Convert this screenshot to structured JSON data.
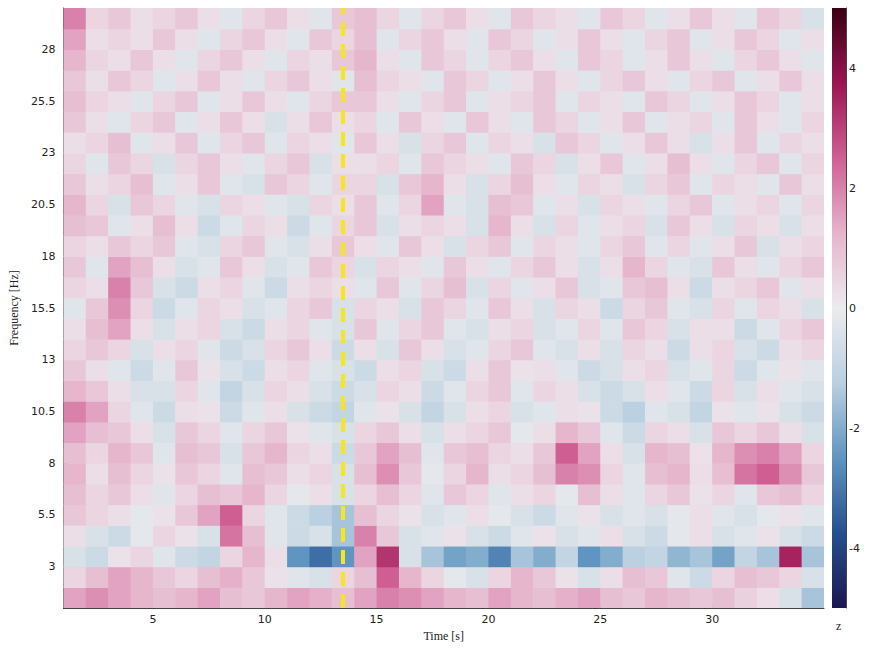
{
  "chart_data": {
    "type": "heatmap",
    "xlabel": "Time [s]",
    "ylabel": "Frequency [Hz]",
    "xlim": [
      1,
      35
    ],
    "ylim": [
      1,
      30
    ],
    "xticks": [
      5,
      10,
      15,
      20,
      25,
      30
    ],
    "yticks": [
      3,
      5.5,
      8,
      10.5,
      13,
      15.5,
      18,
      20.5,
      23,
      25.5,
      28
    ],
    "colorbar": {
      "range": [
        -5,
        5
      ],
      "ticks": [
        -4,
        -2,
        0,
        2,
        4
      ],
      "label": "z"
    },
    "vlines": [
      {
        "x": 13.5,
        "color": "#f5e61e",
        "line_style": "dashed"
      }
    ],
    "x": [
      1.5,
      2.5,
      3.5,
      4.5,
      5.5,
      6.5,
      7.5,
      8.5,
      9.5,
      10.5,
      11.5,
      12.5,
      13.5,
      14.5,
      15.5,
      16.5,
      17.5,
      18.5,
      19.5,
      20.5,
      21.5,
      22.5,
      23.5,
      24.5,
      25.5,
      26.5,
      27.5,
      28.5,
      29.5,
      30.5,
      31.5,
      32.5,
      33.5,
      34.5
    ],
    "y": [
      1.5,
      2.5,
      3.5,
      4.5,
      5.5,
      6.5,
      7.5,
      8.5,
      9.5,
      10.5,
      11.5,
      12.5,
      13.5,
      14.5,
      15.5,
      16.5,
      17.5,
      18.5,
      19.5,
      20.5,
      21.5,
      22.5,
      23.5,
      24.5,
      25.5,
      26.5,
      27.5,
      28.5,
      29.5
    ],
    "z": [
      [
        1.5,
        1.8,
        1.5,
        1.2,
        1.0,
        1.2,
        1.5,
        1.0,
        0.8,
        1.2,
        1.5,
        1.3,
        1.0,
        1.5,
        2.0,
        1.8,
        1.5,
        1.2,
        1.0,
        1.5,
        1.2,
        1.0,
        1.3,
        1.5,
        1.0,
        0.8,
        1.2,
        1.0,
        0.8,
        1.0,
        0.6,
        0.3,
        -0.5,
        -1.5
      ],
      [
        0.5,
        1.0,
        1.5,
        1.2,
        0.8,
        0.5,
        1.0,
        1.3,
        0.8,
        0.2,
        -0.3,
        -0.5,
        0.5,
        1.0,
        2.5,
        1.2,
        0.5,
        -0.2,
        -0.5,
        0.5,
        1.2,
        0.8,
        0.2,
        -0.5,
        0.3,
        1.0,
        0.8,
        -0.3,
        -0.8,
        0.5,
        1.0,
        0.8,
        0.5,
        -0.5
      ],
      [
        -0.5,
        -0.8,
        0.2,
        0.5,
        -0.3,
        -0.8,
        -1.0,
        0.5,
        1.2,
        0.3,
        -2.5,
        -3.2,
        -2.5,
        1.5,
        3.2,
        -0.5,
        -1.5,
        -2.2,
        -2.0,
        -2.8,
        -1.5,
        -2.0,
        -1.0,
        -2.5,
        -2.0,
        -1.2,
        -1.0,
        -1.8,
        -1.5,
        -2.2,
        -1.0,
        -1.5,
        3.5,
        -1.5
      ],
      [
        0.3,
        -0.5,
        -0.8,
        -0.2,
        0.5,
        0.2,
        -0.5,
        2.2,
        1.0,
        -0.3,
        -0.8,
        -0.5,
        -1.5,
        2.0,
        0.8,
        -0.5,
        -0.3,
        0.2,
        -0.5,
        -0.8,
        -0.3,
        0.2,
        -0.5,
        -0.3,
        0.3,
        -0.5,
        -0.8,
        -0.2,
        0.3,
        -0.5,
        -0.3,
        0.2,
        -0.5,
        -0.8
      ],
      [
        0.8,
        0.5,
        0.3,
        -0.2,
        0.2,
        0.8,
        1.5,
        2.5,
        0.5,
        -0.3,
        -0.8,
        -1.2,
        -1.5,
        1.0,
        0.5,
        0.2,
        -0.5,
        -0.3,
        0.3,
        -0.2,
        -0.5,
        -0.8,
        -0.3,
        0.2,
        -0.5,
        -0.3,
        -0.5,
        -0.2,
        0.3,
        -0.3,
        -0.5,
        -0.2,
        0.2,
        -0.3
      ],
      [
        1.0,
        0.5,
        0.8,
        0.3,
        -0.3,
        0.5,
        1.0,
        0.8,
        1.2,
        0.5,
        -0.2,
        0.3,
        -0.5,
        0.5,
        1.0,
        0.5,
        -0.3,
        0.8,
        0.5,
        -0.3,
        0.3,
        0.5,
        -0.2,
        1.0,
        0.3,
        -0.3,
        0.5,
        0.8,
        0.2,
        0.5,
        -0.3,
        0.8,
        1.0,
        0.5
      ],
      [
        1.2,
        0.3,
        1.0,
        0.5,
        0.2,
        0.8,
        0.5,
        -0.3,
        1.0,
        0.8,
        0.3,
        0.5,
        -0.5,
        1.0,
        1.8,
        0.8,
        -0.2,
        0.5,
        1.2,
        0.3,
        0.5,
        1.0,
        2.0,
        1.8,
        0.5,
        -0.3,
        1.0,
        1.2,
        0.3,
        1.0,
        2.2,
        2.5,
        1.8,
        0.8
      ],
      [
        1.0,
        0.5,
        1.2,
        0.8,
        -0.3,
        1.0,
        0.8,
        -0.5,
        0.8,
        1.2,
        0.5,
        0.3,
        -0.8,
        0.8,
        1.5,
        1.0,
        -0.3,
        0.8,
        1.0,
        0.5,
        0.3,
        0.8,
        2.5,
        1.5,
        0.3,
        -0.5,
        1.2,
        1.0,
        0.2,
        1.2,
        1.8,
        2.0,
        1.5,
        0.5
      ],
      [
        1.5,
        1.0,
        0.8,
        0.3,
        -0.5,
        0.8,
        0.5,
        -0.3,
        0.5,
        0.8,
        0.2,
        -0.3,
        -0.5,
        0.5,
        0.8,
        0.3,
        -0.5,
        0.3,
        0.5,
        0.8,
        -0.2,
        0.3,
        1.2,
        0.8,
        -0.3,
        -0.8,
        0.5,
        0.3,
        -0.5,
        0.8,
        0.5,
        0.8,
        0.3,
        -0.5
      ],
      [
        2.0,
        1.5,
        0.5,
        -0.3,
        -0.8,
        0.3,
        0.2,
        -0.8,
        -0.3,
        0.3,
        -0.5,
        -0.8,
        -1.0,
        -0.3,
        0.2,
        -0.5,
        -1.0,
        -0.5,
        0.3,
        0.5,
        -0.5,
        -0.3,
        0.3,
        0.2,
        -0.8,
        -1.2,
        -0.3,
        -0.5,
        -1.0,
        0.2,
        -0.3,
        0.2,
        -0.5,
        -0.8
      ],
      [
        1.2,
        0.8,
        0.3,
        -0.5,
        -0.5,
        0.5,
        -0.3,
        -1.0,
        -0.5,
        0.5,
        0.3,
        -0.5,
        -0.8,
        -0.5,
        0.5,
        0.3,
        -0.8,
        -0.3,
        0.5,
        0.8,
        -0.3,
        0.5,
        0.3,
        -0.5,
        -0.8,
        -0.5,
        0.3,
        -0.3,
        -0.8,
        0.5,
        -0.5,
        0.3,
        -0.3,
        -0.5
      ],
      [
        0.8,
        0.3,
        -0.3,
        -0.8,
        -0.3,
        0.8,
        0.2,
        -0.5,
        -0.8,
        0.3,
        0.5,
        -0.3,
        -0.5,
        -0.8,
        0.3,
        0.5,
        -0.5,
        -0.8,
        0.3,
        0.8,
        0.2,
        0.3,
        -0.3,
        -0.8,
        -0.5,
        0.3,
        0.5,
        -0.5,
        -0.3,
        0.5,
        -0.8,
        -0.3,
        0.2,
        -0.3
      ],
      [
        0.5,
        0.8,
        0.5,
        -0.5,
        0.3,
        0.5,
        -0.3,
        -0.8,
        -0.5,
        0.5,
        0.8,
        0.3,
        -0.8,
        0.3,
        -0.5,
        0.8,
        0.3,
        -0.5,
        -0.3,
        0.5,
        0.8,
        -0.3,
        -0.5,
        0.3,
        -0.5,
        0.5,
        0.3,
        -0.8,
        0.3,
        0.5,
        -0.5,
        -0.8,
        0.3,
        0.5
      ],
      [
        0.3,
        1.0,
        1.5,
        0.3,
        -0.5,
        0.3,
        0.5,
        -0.5,
        -0.8,
        0.3,
        0.5,
        -0.3,
        -0.5,
        0.8,
        -0.3,
        0.5,
        0.8,
        -0.3,
        -0.5,
        0.3,
        0.5,
        -0.5,
        -0.3,
        0.5,
        -0.3,
        0.8,
        0.5,
        -0.5,
        0.3,
        0.3,
        -0.8,
        -0.3,
        0.5,
        0.8
      ],
      [
        -0.3,
        0.8,
        1.8,
        0.5,
        -0.8,
        -0.3,
        0.5,
        0.3,
        -0.5,
        -0.3,
        0.5,
        0.8,
        -0.5,
        0.5,
        0.3,
        -0.5,
        0.8,
        0.5,
        -0.3,
        0.8,
        0.3,
        -0.5,
        0.5,
        0.3,
        -0.8,
        0.5,
        0.8,
        -0.3,
        -0.5,
        0.5,
        -0.3,
        0.5,
        0.3,
        -0.5
      ],
      [
        0.5,
        0.3,
        2.0,
        0.8,
        -0.5,
        -0.8,
        0.3,
        0.5,
        -0.3,
        -0.8,
        0.3,
        0.5,
        0.3,
        -0.3,
        0.8,
        -0.3,
        0.5,
        1.0,
        -0.5,
        0.5,
        -0.3,
        0.3,
        0.8,
        -0.5,
        -0.3,
        0.8,
        1.0,
        0.3,
        -0.8,
        0.3,
        0.5,
        0.8,
        -0.3,
        0.3
      ],
      [
        0.8,
        -0.3,
        1.5,
        1.0,
        0.3,
        -0.5,
        -0.3,
        0.8,
        0.3,
        -0.5,
        -0.3,
        0.8,
        0.5,
        -0.5,
        0.5,
        0.3,
        -0.3,
        0.8,
        0.3,
        -0.3,
        0.5,
        0.8,
        0.3,
        -0.5,
        0.3,
        1.2,
        0.5,
        -0.3,
        -0.5,
        0.8,
        0.3,
        -0.3,
        0.5,
        0.8
      ],
      [
        0.5,
        0.3,
        0.8,
        0.5,
        0.8,
        -0.3,
        -0.5,
        0.5,
        0.8,
        -0.3,
        -0.5,
        0.3,
        0.8,
        0.3,
        -0.3,
        0.8,
        0.3,
        -0.5,
        0.5,
        0.8,
        -0.3,
        0.5,
        0.3,
        -0.3,
        0.5,
        0.8,
        -0.3,
        0.5,
        -0.3,
        0.3,
        0.8,
        -0.5,
        0.3,
        0.5
      ],
      [
        1.0,
        0.8,
        -0.3,
        0.3,
        1.0,
        0.3,
        -0.8,
        -0.3,
        0.5,
        0.3,
        -0.8,
        -0.3,
        0.5,
        0.8,
        -0.5,
        0.3,
        0.5,
        0.3,
        -0.5,
        1.2,
        0.3,
        -0.5,
        0.5,
        -0.3,
        0.3,
        0.5,
        -0.5,
        0.8,
        0.3,
        -0.5,
        0.5,
        0.3,
        -0.5,
        0.3
      ],
      [
        1.2,
        0.5,
        -0.5,
        0.8,
        0.5,
        -0.3,
        -0.5,
        0.5,
        0.3,
        -0.3,
        -0.5,
        0.5,
        0.3,
        0.8,
        -0.3,
        0.5,
        1.5,
        -0.3,
        -0.5,
        1.0,
        0.8,
        -0.3,
        0.3,
        -0.5,
        0.5,
        0.3,
        -0.3,
        0.5,
        0.8,
        -0.3,
        0.3,
        0.5,
        -0.3,
        0.5
      ],
      [
        0.8,
        0.3,
        0.5,
        1.0,
        -0.3,
        0.3,
        0.8,
        -0.3,
        -0.5,
        0.8,
        0.5,
        -0.3,
        0.5,
        0.5,
        -0.5,
        0.8,
        1.2,
        0.3,
        -0.5,
        0.5,
        1.0,
        0.3,
        -0.3,
        0.5,
        0.3,
        -0.5,
        0.5,
        0.8,
        -0.3,
        0.5,
        0.3,
        -0.3,
        0.8,
        0.3
      ],
      [
        0.5,
        -0.3,
        0.8,
        0.5,
        -0.5,
        0.5,
        0.8,
        0.3,
        -0.3,
        0.5,
        0.8,
        -0.5,
        0.3,
        0.3,
        0.5,
        -0.3,
        0.8,
        0.5,
        0.3,
        -0.3,
        0.8,
        0.5,
        -0.5,
        0.3,
        0.8,
        -0.3,
        0.3,
        1.0,
        0.3,
        -0.3,
        0.5,
        0.8,
        -0.3,
        0.5
      ],
      [
        0.3,
        0.5,
        1.0,
        -0.3,
        0.3,
        0.8,
        -0.3,
        0.5,
        0.8,
        -0.3,
        0.5,
        0.3,
        -0.3,
        0.8,
        0.3,
        -0.5,
        0.5,
        0.8,
        -0.3,
        0.5,
        0.3,
        -0.5,
        0.8,
        0.5,
        -0.3,
        0.3,
        0.8,
        0.3,
        -0.5,
        0.3,
        0.8,
        -0.3,
        0.5,
        0.3
      ],
      [
        0.8,
        0.3,
        -0.3,
        0.5,
        0.8,
        -0.3,
        0.3,
        0.8,
        0.3,
        -0.5,
        0.3,
        0.8,
        0.3,
        0.5,
        -0.3,
        0.8,
        0.3,
        -0.3,
        0.8,
        0.3,
        -0.3,
        0.8,
        0.5,
        -0.3,
        0.3,
        0.8,
        -0.3,
        0.3,
        0.5,
        -0.3,
        0.8,
        0.3,
        -0.3,
        0.5
      ],
      [
        1.0,
        0.5,
        0.3,
        -0.3,
        0.5,
        0.8,
        -0.3,
        0.3,
        0.8,
        0.3,
        -0.3,
        0.5,
        0.8,
        0.8,
        0.3,
        -0.3,
        0.5,
        0.8,
        -0.3,
        0.3,
        0.5,
        0.8,
        -0.3,
        0.5,
        0.3,
        -0.3,
        0.8,
        0.5,
        -0.3,
        0.3,
        0.8,
        0.5,
        -0.3,
        0.3
      ],
      [
        0.8,
        0.3,
        0.8,
        0.5,
        -0.3,
        0.3,
        0.8,
        0.3,
        -0.3,
        0.5,
        0.8,
        0.3,
        -0.3,
        1.0,
        0.5,
        0.3,
        -0.3,
        0.8,
        0.5,
        -0.3,
        0.3,
        0.8,
        0.3,
        -0.3,
        0.5,
        0.8,
        0.3,
        -0.3,
        0.5,
        0.8,
        -0.3,
        0.3,
        0.8,
        0.3
      ],
      [
        1.2,
        0.5,
        0.3,
        0.8,
        0.3,
        -0.3,
        0.5,
        0.8,
        0.3,
        -0.3,
        0.5,
        0.3,
        0.8,
        1.2,
        0.3,
        -0.3,
        0.8,
        0.5,
        -0.3,
        0.5,
        0.8,
        0.3,
        -0.3,
        0.8,
        0.5,
        -0.3,
        0.3,
        0.8,
        0.3,
        -0.3,
        0.5,
        0.8,
        0.3,
        -0.3
      ],
      [
        1.5,
        0.3,
        0.5,
        0.3,
        0.8,
        0.3,
        -0.3,
        0.5,
        0.8,
        0.3,
        -0.3,
        0.8,
        0.5,
        1.0,
        -0.3,
        0.5,
        0.8,
        0.3,
        -0.3,
        0.8,
        0.5,
        -0.3,
        0.3,
        0.8,
        0.3,
        -0.3,
        0.5,
        0.8,
        -0.3,
        0.3,
        0.8,
        0.5,
        -0.3,
        0.3
      ],
      [
        2.0,
        0.5,
        0.8,
        0.3,
        0.5,
        0.8,
        0.3,
        -0.3,
        0.5,
        0.8,
        0.3,
        -0.3,
        0.8,
        1.0,
        0.5,
        -0.3,
        0.5,
        0.8,
        0.3,
        -0.3,
        0.8,
        0.5,
        0.3,
        -0.3,
        0.8,
        0.5,
        -0.3,
        0.3,
        0.8,
        0.3,
        -0.3,
        0.8,
        0.5,
        -0.5
      ]
    ]
  }
}
